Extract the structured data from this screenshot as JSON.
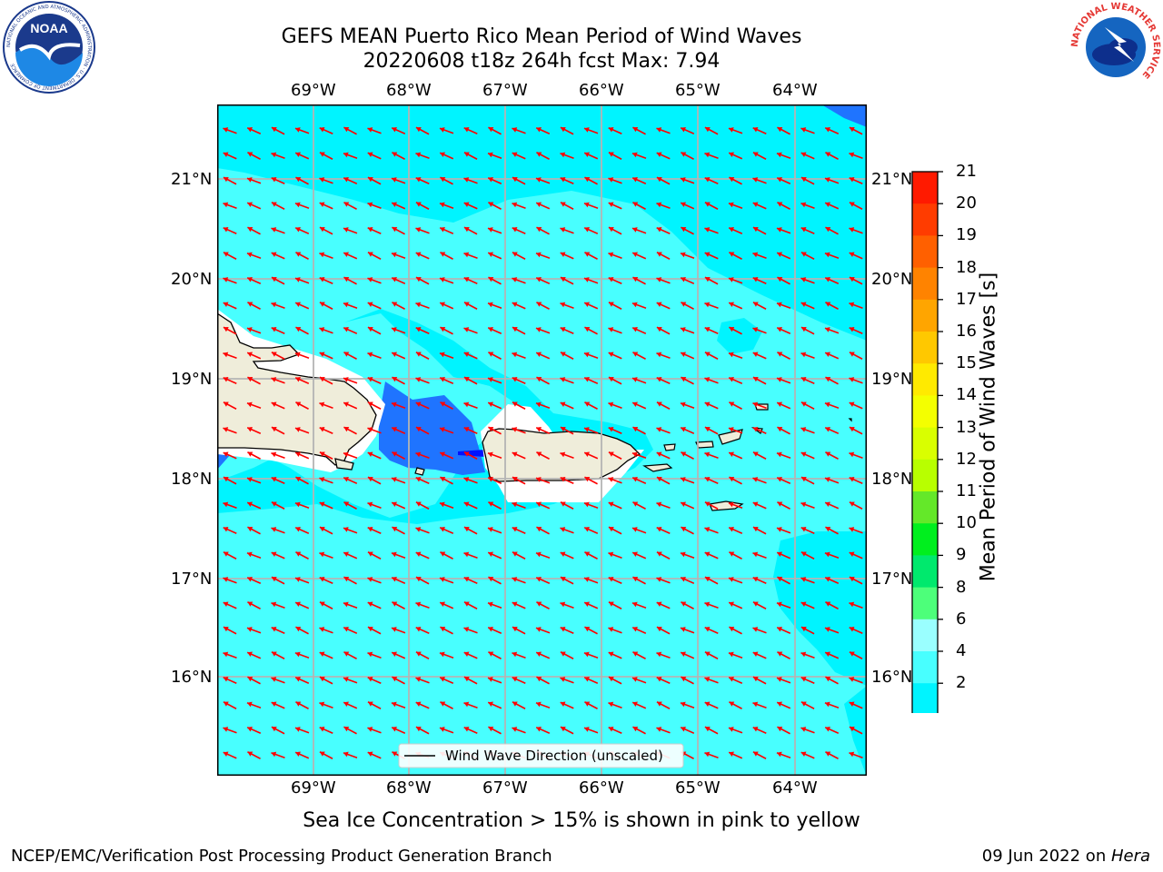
{
  "header": {
    "title_line1": "GEFS MEAN Puerto Rico Mean Period of Wind Waves",
    "title_line2": "20220608 t18z 264h fcst   Max: 7.94"
  },
  "logos": {
    "left": "NOAA",
    "left_ring": "NATIONAL OCEANIC AND ATMOSPHERIC ADMINISTRATION · U.S. DEPARTMENT OF COMMERCE",
    "right_ring": "NATIONAL WEATHER SERVICE"
  },
  "map": {
    "lon_labels": [
      "69°W",
      "68°W",
      "67°W",
      "66°W",
      "65°W",
      "64°W"
    ],
    "lat_labels": [
      "21°N",
      "20°N",
      "19°N",
      "18°N",
      "17°N",
      "16°N"
    ],
    "legend_label": "Wind Wave Direction (unscaled)",
    "colors": {
      "ocean_6_8": "#48ffff",
      "ocean_4_6": "#00f4ff",
      "ocean_2_4": "#1f74ff",
      "land": "#efedda",
      "arrow": "#ff0000"
    }
  },
  "colorbar": {
    "title": "Mean Period of Wind Waves [s]",
    "labels": [
      "21",
      "20",
      "19",
      "18",
      "17",
      "16",
      "15",
      "14",
      "13",
      "12",
      "11",
      "10",
      "9",
      "8",
      "6",
      "4",
      "2"
    ],
    "colors": [
      "#ff1a00",
      "#ff3c00",
      "#ff6000",
      "#ff8300",
      "#ffa500",
      "#ffc800",
      "#ffea00",
      "#f4ff00",
      "#d9ff00",
      "#b8ff00",
      "#64e829",
      "#00ef1e",
      "#00e96d",
      "#4dff7a",
      "#9affff",
      "#48ffff",
      "#00f4ff",
      "#1f74ff",
      "#0012ff"
    ]
  },
  "footer": {
    "subtitle": "Sea Ice Concentration > 15% is shown in pink to yellow",
    "left": "NCEP/EMC/Verification Post Processing Product Generation Branch",
    "right_prefix": "09 Jun 2022 on ",
    "right_italic": "Hera"
  }
}
